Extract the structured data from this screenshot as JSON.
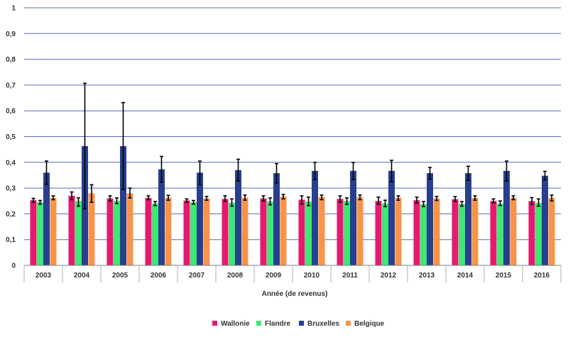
{
  "chart_data": {
    "type": "bar",
    "title": "",
    "xlabel": "Année (de revenus)",
    "ylabel": "",
    "ylim": [
      0,
      1
    ],
    "yticks": [
      "0",
      "0,1",
      "0,2",
      "0,3",
      "0,4",
      "0,5",
      "0,6",
      "0,7",
      "0,8",
      "0,9",
      "1"
    ],
    "grid": true,
    "legend_position": "bottom",
    "categories": [
      "2003",
      "2004",
      "2005",
      "2006",
      "2007",
      "2008",
      "2009",
      "2010",
      "2011",
      "2012",
      "2013",
      "2014",
      "2015",
      "2016"
    ],
    "series": [
      {
        "name": "Wallonie",
        "color": "#e6196e",
        "values": [
          0.253,
          0.27,
          0.26,
          0.262,
          0.252,
          0.258,
          0.26,
          0.255,
          0.258,
          0.25,
          0.253,
          0.257,
          0.25,
          0.25
        ],
        "err_low": [
          0.245,
          0.255,
          0.25,
          0.255,
          0.245,
          0.248,
          0.25,
          0.238,
          0.245,
          0.238,
          0.242,
          0.248,
          0.243,
          0.237
        ],
        "err_high": [
          0.26,
          0.285,
          0.27,
          0.27,
          0.258,
          0.27,
          0.27,
          0.27,
          0.27,
          0.265,
          0.265,
          0.267,
          0.258,
          0.263
        ]
      },
      {
        "name": "Flandre",
        "color": "#3de874",
        "values": [
          0.245,
          0.25,
          0.25,
          0.24,
          0.245,
          0.243,
          0.248,
          0.248,
          0.25,
          0.24,
          0.238,
          0.238,
          0.24,
          0.243
        ],
        "err_low": [
          0.238,
          0.23,
          0.24,
          0.232,
          0.238,
          0.23,
          0.235,
          0.232,
          0.237,
          0.228,
          0.228,
          0.23,
          0.232,
          0.23
        ],
        "err_high": [
          0.252,
          0.262,
          0.262,
          0.248,
          0.252,
          0.258,
          0.262,
          0.265,
          0.262,
          0.253,
          0.248,
          0.248,
          0.25,
          0.258
        ]
      },
      {
        "name": "Bruxelles",
        "color": "#283e8e",
        "values": [
          0.36,
          0.463,
          0.463,
          0.373,
          0.36,
          0.37,
          0.358,
          0.367,
          0.367,
          0.367,
          0.358,
          0.358,
          0.367,
          0.348
        ],
        "err_low": [
          0.315,
          0.22,
          0.295,
          0.323,
          0.315,
          0.328,
          0.32,
          0.333,
          0.333,
          0.325,
          0.335,
          0.33,
          0.328,
          0.332
        ],
        "err_high": [
          0.405,
          0.707,
          0.632,
          0.423,
          0.405,
          0.412,
          0.395,
          0.4,
          0.4,
          0.408,
          0.38,
          0.385,
          0.405,
          0.365
        ]
      },
      {
        "name": "Belgique",
        "color": "#f7944a",
        "values": [
          0.262,
          0.28,
          0.28,
          0.263,
          0.26,
          0.263,
          0.267,
          0.265,
          0.265,
          0.262,
          0.26,
          0.262,
          0.263,
          0.262
        ],
        "err_low": [
          0.255,
          0.245,
          0.262,
          0.253,
          0.253,
          0.253,
          0.258,
          0.255,
          0.255,
          0.253,
          0.252,
          0.253,
          0.255,
          0.25
        ],
        "err_high": [
          0.27,
          0.313,
          0.3,
          0.272,
          0.268,
          0.273,
          0.275,
          0.273,
          0.273,
          0.27,
          0.268,
          0.27,
          0.27,
          0.273
        ]
      }
    ]
  }
}
